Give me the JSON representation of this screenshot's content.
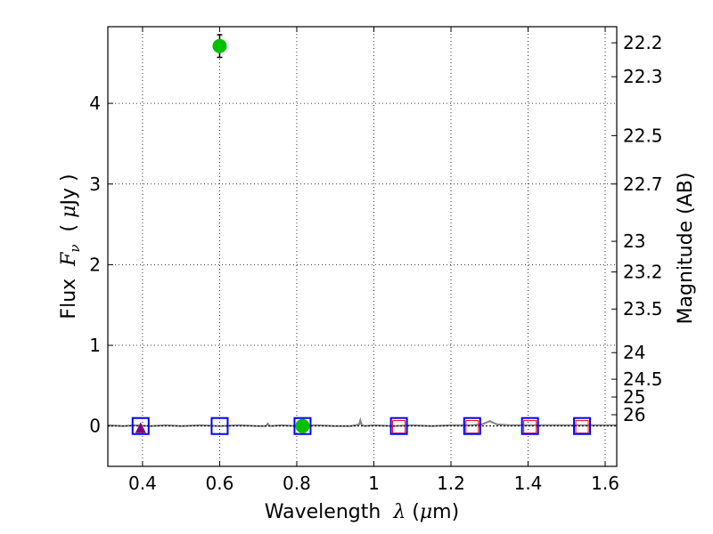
{
  "chart_data": {
    "type": "scatter",
    "xlabel_prefix": "Wavelength",
    "xlabel_symbol": "λ",
    "xlabel_units_open": "(",
    "xlabel_units_mu": "μ",
    "xlabel_units_rest": "m)",
    "ylabel_prefix": "Flux",
    "ylabel_symbol": "F",
    "ylabel_subscript": "ν",
    "ylabel_units_open": "(",
    "ylabel_units_mu": "μ",
    "ylabel_units_rest": "Jy )",
    "y2label": "Magnitude (AB)",
    "xlim": [
      0.31,
      1.63
    ],
    "ylim": [
      -0.5,
      4.95
    ],
    "grid": true,
    "x_ticks": [
      {
        "value": 0.4,
        "label": "0.4"
      },
      {
        "value": 0.6,
        "label": "0.6"
      },
      {
        "value": 0.8,
        "label": "0.8"
      },
      {
        "value": 1.0,
        "label": "1"
      },
      {
        "value": 1.2,
        "label": "1.2"
      },
      {
        "value": 1.4,
        "label": "1.4"
      },
      {
        "value": 1.6,
        "label": "1.6"
      }
    ],
    "y_ticks": [
      {
        "value": 0,
        "label": "0"
      },
      {
        "value": 1,
        "label": "1"
      },
      {
        "value": 2,
        "label": "2"
      },
      {
        "value": 3,
        "label": "3"
      },
      {
        "value": 4,
        "label": "4"
      }
    ],
    "magnitude_ticks": [
      {
        "flux": 4.75,
        "label": "22.2"
      },
      {
        "flux": 4.33,
        "label": "22.3"
      },
      {
        "flux": 3.6,
        "label": "22.5"
      },
      {
        "flux": 3.0,
        "label": "22.7"
      },
      {
        "flux": 2.29,
        "label": "23"
      },
      {
        "flux": 1.91,
        "label": "23.2"
      },
      {
        "flux": 1.45,
        "label": "23.5"
      },
      {
        "flux": 0.91,
        "label": "24"
      },
      {
        "flux": 0.58,
        "label": "24.5"
      },
      {
        "flux": 0.36,
        "label": "25"
      },
      {
        "flux": 0.14,
        "label": "26"
      }
    ],
    "detections": [
      {
        "x": 0.6,
        "y": 4.71,
        "yerr": 0.14
      },
      {
        "x": 0.815,
        "y": 0.0,
        "yerr": 0.03
      }
    ],
    "triangles": [
      {
        "x": 0.395,
        "y": -0.03
      }
    ],
    "model_squares": [
      {
        "x": 0.395,
        "y": 0.0
      },
      {
        "x": 0.6,
        "y": 0.0
      },
      {
        "x": 0.815,
        "y": 0.0
      },
      {
        "x": 1.065,
        "y": 0.0
      },
      {
        "x": 1.255,
        "y": 0.0
      },
      {
        "x": 1.405,
        "y": 0.0
      },
      {
        "x": 1.54,
        "y": 0.0
      }
    ],
    "limit_squares": [
      {
        "x": 1.065,
        "y": -0.01
      },
      {
        "x": 1.255,
        "y": -0.01
      },
      {
        "x": 1.405,
        "y": -0.01
      },
      {
        "x": 1.54,
        "y": -0.01
      }
    ],
    "spectrum": {
      "x": [
        0.31,
        0.35,
        0.38,
        0.42,
        0.46,
        0.5,
        0.55,
        0.6,
        0.65,
        0.7,
        0.72,
        0.725,
        0.73,
        0.76,
        0.8,
        0.85,
        0.9,
        0.94,
        0.962,
        0.965,
        0.968,
        0.975,
        1.0,
        1.05,
        1.1,
        1.15,
        1.2,
        1.25,
        1.28,
        1.3,
        1.32,
        1.35,
        1.4,
        1.45,
        1.5,
        1.55,
        1.6,
        1.63
      ],
      "y": [
        0.01,
        0.0,
        0.01,
        0.0,
        0.01,
        0.0,
        0.01,
        0.0,
        0.01,
        0.0,
        0.0,
        0.03,
        0.0,
        0.01,
        0.0,
        0.01,
        0.0,
        0.0,
        0.02,
        0.07,
        0.02,
        0.0,
        0.01,
        0.0,
        0.01,
        0.0,
        0.01,
        0.01,
        0.02,
        0.06,
        0.02,
        0.01,
        0.01,
        0.01,
        0.01,
        0.01,
        0.01,
        0.01
      ]
    },
    "colors": {
      "detection": "#00c000",
      "triangle": "#800080",
      "model_square": "#0000ff",
      "limit_square": "#ff0000",
      "spectrum": "#808080",
      "grid": "#000000"
    }
  }
}
